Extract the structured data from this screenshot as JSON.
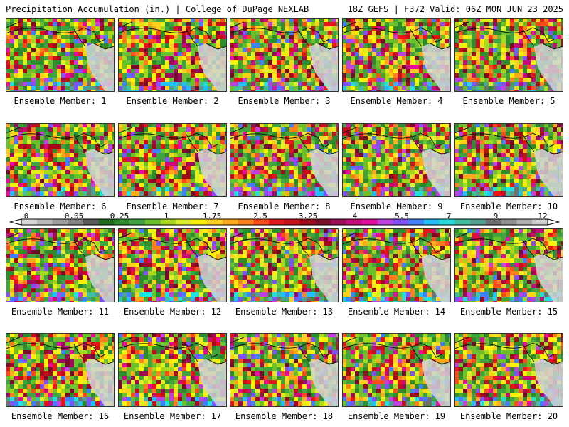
{
  "header": {
    "left": "Precipitation Accumulation (in.) | College of DuPage NEXLAB",
    "right": "18Z GEFS | F372 Valid: 06Z MON JUN 23 2025"
  },
  "colors": {
    "bins": [
      "#d8d8d8",
      "#bcbcbc",
      "#a0a0a0",
      "#848484",
      "#5a5a5a",
      "#1f6b1f",
      "#2e8b2e",
      "#3fa43f",
      "#6cc02c",
      "#a6d91c",
      "#e0f020",
      "#fff200",
      "#ffd21a",
      "#ffaa1a",
      "#ff7f1a",
      "#ff4a1a",
      "#e8141a",
      "#c80e1a",
      "#a00a1a",
      "#780a2a",
      "#9e0a5a",
      "#c80a7a",
      "#e60aa0",
      "#c040e0",
      "#8050ff",
      "#4080ff",
      "#20c0ff",
      "#20e0e0",
      "#40c0a0",
      "#50a090",
      "#707070",
      "#909090",
      "#b0b0b0",
      "#d0d0d0"
    ],
    "ocean_base": "#3a9a32",
    "land": "#cfd3d8"
  },
  "scale_labels": [
    "0",
    "0.05",
    "0.25",
    "1",
    "1.75",
    "2.5",
    "3.25",
    "4",
    "5.5",
    "7",
    "9",
    "12"
  ],
  "members": [
    {
      "label": "Ensemble Member: 1"
    },
    {
      "label": "Ensemble Member: 2"
    },
    {
      "label": "Ensemble Member: 3"
    },
    {
      "label": "Ensemble Member: 4"
    },
    {
      "label": "Ensemble Member: 5"
    },
    {
      "label": "Ensemble Member: 6"
    },
    {
      "label": "Ensemble Member: 7"
    },
    {
      "label": "Ensemble Member: 8"
    },
    {
      "label": "Ensemble Member: 9"
    },
    {
      "label": "Ensemble Member: 10"
    },
    {
      "label": "Ensemble Member: 11"
    },
    {
      "label": "Ensemble Member: 12"
    },
    {
      "label": "Ensemble Member: 13"
    },
    {
      "label": "Ensemble Member: 14"
    },
    {
      "label": "Ensemble Member: 15"
    },
    {
      "label": "Ensemble Member: 16"
    },
    {
      "label": "Ensemble Member: 17"
    },
    {
      "label": "Ensemble Member: 18"
    },
    {
      "label": "Ensemble Member: 19"
    },
    {
      "label": "Ensemble Member: 20"
    }
  ]
}
